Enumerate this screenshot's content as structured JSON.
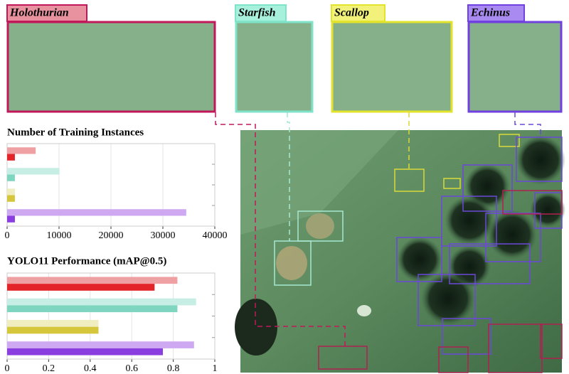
{
  "crops": [
    {
      "label": "Holothurian",
      "color": "#c2185b",
      "fill": "#e8929f"
    },
    {
      "label": "Starfish",
      "color": "#7fe3c9",
      "fill": "#a6f0dc"
    },
    {
      "label": "Scallop",
      "color": "#e3e32b",
      "fill": "#f2f27a"
    },
    {
      "label": "Echinus",
      "color": "#7040e0",
      "fill": "#a98af0"
    }
  ],
  "chart_data": [
    {
      "type": "bar",
      "orientation": "horizontal",
      "title": "Number of Training Instances",
      "categories": [
        null,
        null,
        null,
        null
      ],
      "series": [
        {
          "colors": [
            "#eea0a3",
            "#c6eee4",
            "#f0eec0",
            "#cfa8f2"
          ],
          "values": [
            5500,
            10100,
            1500,
            34500
          ]
        },
        {
          "colors": [
            "#e3252a",
            "#7fd6c0",
            "#d6c63c",
            "#8a3ee0"
          ],
          "values": [
            1500,
            1500,
            1500,
            1500
          ]
        }
      ],
      "xlim": [
        0,
        40000
      ],
      "xticks": [
        0,
        10000,
        20000,
        30000,
        40000
      ],
      "grid": true
    },
    {
      "type": "bar",
      "orientation": "horizontal",
      "title": "YOLO11 Performance (mAP@0.5)",
      "categories": [
        null,
        null,
        null,
        null
      ],
      "series": [
        {
          "colors": [
            "#eea0a3",
            "#c6eee4",
            "#f0eec0",
            "#cfa8f2"
          ],
          "values": [
            0.82,
            0.91,
            0.44,
            0.9
          ]
        },
        {
          "colors": [
            "#e3252a",
            "#7fd6c0",
            "#d6c63c",
            "#8a3ee0"
          ],
          "values": [
            0.71,
            0.82,
            0.44,
            0.75
          ]
        }
      ],
      "xlim": [
        0,
        1
      ],
      "xticks": [
        0,
        0.2,
        0.4,
        0.6,
        0.8,
        1
      ],
      "grid": true
    }
  ]
}
